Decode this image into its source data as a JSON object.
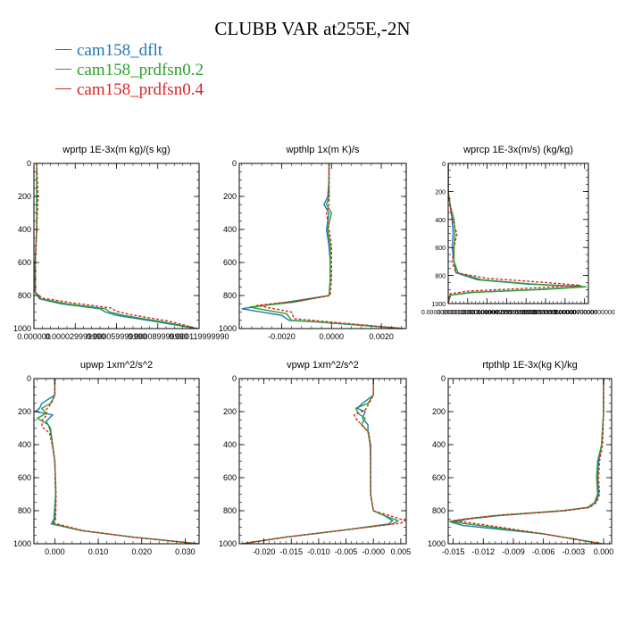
{
  "title": "CLUBB VAR at255E,-2N",
  "legend": [
    {
      "label": "cam158_dflt",
      "color": "#1f77b4"
    },
    {
      "label": "cam158_prdfsn0.2",
      "color": "#2ca02c"
    },
    {
      "label": "cam158_prdfsn0.4",
      "color": "#d62728"
    }
  ],
  "chart_data": [
    {
      "type": "line",
      "title": "wprtp  1E-3x(m kg)/(s kg)",
      "xlim": [
        0,
        0.00012
      ],
      "ylim": [
        1000,
        0
      ],
      "xticks": [
        0,
        3e-05,
        6e-05,
        9e-05,
        0.00012
      ],
      "xtick_labels": [
        "0.000000",
        "0.000029999990",
        "0.000059999990",
        "0.000089999990",
        "0.000119999990"
      ],
      "yticks": [
        0,
        200,
        400,
        600,
        800,
        1000
      ],
      "series": [
        {
          "name": "cam158_dflt",
          "y": [
            0,
            200,
            400,
            600,
            780,
            820,
            850,
            880,
            900,
            920,
            960,
            1000
          ],
          "x": [
            2e-06,
            2e-06,
            2e-06,
            1e-06,
            1e-06,
            4e-06,
            2e-05,
            4.8e-05,
            5.2e-05,
            6e-05,
            9e-05,
            0.000118
          ]
        },
        {
          "name": "cam158_prdfsn0.2",
          "y": [
            0,
            200,
            400,
            600,
            780,
            820,
            850,
            880,
            900,
            920,
            960,
            1000
          ],
          "x": [
            2e-06,
            2e-06,
            2e-06,
            1e-06,
            1e-06,
            5e-06,
            2.4e-05,
            5.2e-05,
            5.5e-05,
            6.5e-05,
            9.4e-05,
            0.000119
          ]
        },
        {
          "name": "cam158_prdfsn0.4",
          "y": [
            0,
            200,
            400,
            600,
            780,
            815,
            845,
            875,
            895,
            915,
            955,
            1000
          ],
          "x": [
            2e-06,
            3e-06,
            2e-06,
            1e-06,
            1e-06,
            6e-06,
            2.8e-05,
            5.6e-05,
            6e-05,
            7e-05,
            9.8e-05,
            0.000119
          ]
        }
      ]
    },
    {
      "type": "line",
      "title": "wpthlp  1x(m K)/s",
      "xlim": [
        -0.0037,
        0.003
      ],
      "ylim": [
        1000,
        0
      ],
      "xticks": [
        -0.002,
        0,
        0.002
      ],
      "xtick_labels": [
        "-0.0020",
        "0.0000",
        "0.0020"
      ],
      "yticks": [
        0,
        200,
        400,
        600,
        800,
        1000
      ],
      "series": [
        {
          "name": "cam158_dflt",
          "y": [
            0,
            100,
            200,
            250,
            300,
            400,
            500,
            600,
            700,
            800,
            840,
            880,
            920,
            950,
            960,
            1000
          ],
          "x": [
            -0.0001,
            -0.0001,
            -0.00015,
            -0.0003,
            -0.0001,
            -0.0002,
            -0.0001,
            -5e-05,
            -5e-05,
            -0.0001,
            -0.0018,
            -0.0036,
            -0.002,
            -0.0017,
            -0.0006,
            0.0029
          ]
        },
        {
          "name": "cam158_prdfsn0.2",
          "y": [
            0,
            100,
            200,
            250,
            300,
            400,
            500,
            600,
            700,
            800,
            840,
            870,
            910,
            950,
            960,
            1000
          ],
          "x": [
            -0.0001,
            -0.0001,
            -0.0001,
            -0.0002,
            0.0,
            -0.00015,
            -5e-05,
            -5e-05,
            -5e-05,
            -0.0001,
            -0.0015,
            -0.0033,
            -0.0018,
            -0.0016,
            -0.0005,
            0.0029
          ]
        },
        {
          "name": "cam158_prdfsn0.4",
          "y": [
            0,
            100,
            200,
            250,
            300,
            400,
            500,
            600,
            700,
            800,
            830,
            860,
            900,
            940,
            955,
            1000
          ],
          "x": [
            -0.0001,
            -0.0001,
            -0.0001,
            -0.0001,
            -0.0002,
            -0.0001,
            0.0,
            0.0,
            0.0,
            -5e-05,
            -0.0012,
            -0.003,
            -0.0016,
            -0.0015,
            -0.0004,
            0.0029
          ]
        }
      ]
    },
    {
      "type": "line",
      "title": "wprcp  1E-3x(m/s) (kg/kg)",
      "xlim": [
        0,
        7.2e-06
      ],
      "ylim": [
        1000,
        0
      ],
      "xticks": [
        0,
        1e-06,
        2e-06,
        3e-06,
        4e-06,
        5e-06,
        6e-06,
        7e-06
      ],
      "xtick_labels": [
        "0.00000000000000",
        "0.0000010000000000",
        "0.0000019999999",
        "0.0000029999999999",
        "0.0000039999999999",
        "0.0000050000000000",
        "0.00000600000000000",
        "0.0000070000000000"
      ],
      "yticks": [
        0,
        200,
        400,
        600,
        800,
        1000
      ],
      "series": [
        {
          "name": "cam158_dflt",
          "y": [
            0,
            200,
            300,
            400,
            500,
            600,
            700,
            780,
            830,
            860,
            880,
            900,
            920,
            940,
            1000
          ],
          "x": [
            0,
            0,
            1e-07,
            2e-07,
            2.5e-07,
            2e-07,
            3e-07,
            4e-07,
            1.5e-06,
            4e-06,
            7e-06,
            4.5e-06,
            1.2e-06,
            1e-07,
            0
          ]
        },
        {
          "name": "cam158_prdfsn0.2",
          "y": [
            0,
            200,
            300,
            400,
            500,
            600,
            700,
            780,
            830,
            860,
            880,
            900,
            920,
            940,
            1000
          ],
          "x": [
            0,
            0,
            1e-07,
            3e-07,
            3.5e-07,
            3e-07,
            3e-07,
            5e-07,
            1.7e-06,
            4.2e-06,
            7.1e-06,
            4.8e-06,
            1.3e-06,
            1e-07,
            0
          ]
        },
        {
          "name": "cam158_prdfsn0.4",
          "y": [
            0,
            200,
            300,
            400,
            500,
            600,
            700,
            780,
            820,
            850,
            870,
            890,
            910,
            930,
            1000
          ],
          "x": [
            0,
            0,
            1e-07,
            2e-07,
            4.5e-07,
            3e-07,
            2e-07,
            4e-07,
            2e-06,
            5e-06,
            6.8e-06,
            4.2e-06,
            1.1e-06,
            1e-07,
            0
          ]
        }
      ]
    },
    {
      "type": "line",
      "title": "upwp  1xm^2/s^2",
      "xlim": [
        -0.0048,
        0.0332
      ],
      "ylim": [
        1000,
        0
      ],
      "xticks": [
        0,
        0.01,
        0.02,
        0.03
      ],
      "xtick_labels": [
        "0.000",
        "0.010",
        "0.020",
        "0.030"
      ],
      "yticks": [
        0,
        200,
        400,
        600,
        800,
        1000
      ],
      "series": [
        {
          "name": "cam158_dflt",
          "y": [
            0,
            100,
            150,
            180,
            200,
            220,
            260,
            300,
            400,
            500,
            700,
            850,
            880,
            920,
            960,
            1000
          ],
          "x": [
            0.0,
            0.0,
            -0.003,
            -0.0035,
            -0.0045,
            -0.0005,
            -0.002,
            -0.001,
            -0.0005,
            0.0,
            0.0002,
            -0.0002,
            -0.0008,
            0.006,
            0.018,
            0.033
          ]
        },
        {
          "name": "cam158_prdfsn0.2",
          "y": [
            0,
            100,
            150,
            180,
            210,
            240,
            280,
            320,
            400,
            500,
            700,
            850,
            880,
            920,
            960,
            1000
          ],
          "x": [
            0.0,
            0.0,
            -0.001,
            -0.003,
            -0.002,
            -0.004,
            -0.0015,
            -0.001,
            -0.0005,
            0.0,
            0.0002,
            0.0,
            -0.0004,
            0.006,
            0.018,
            0.033
          ]
        },
        {
          "name": "cam158_prdfsn0.4",
          "y": [
            0,
            100,
            150,
            190,
            220,
            250,
            290,
            330,
            400,
            500,
            700,
            850,
            875,
            920,
            960,
            1000
          ],
          "x": [
            0.0,
            0.0,
            -0.0008,
            -0.002,
            -0.0018,
            -0.0028,
            -0.003,
            -0.0012,
            -0.0006,
            0.0,
            0.0003,
            0.0002,
            -0.0001,
            0.0065,
            0.018,
            0.033
          ]
        }
      ]
    },
    {
      "type": "line",
      "title": "vpwp  1xm^2/s^2",
      "xlim": [
        -0.0245,
        0.006
      ],
      "ylim": [
        1000,
        0
      ],
      "xticks": [
        -0.02,
        -0.015,
        -0.01,
        -0.005,
        0,
        0.005
      ],
      "xtick_labels": [
        "-0.020",
        "-0.015",
        "-0.010",
        "-0.005",
        "-0.000",
        "0.005"
      ],
      "yticks": [
        0,
        200,
        400,
        600,
        800,
        1000
      ],
      "series": [
        {
          "name": "cam158_dflt",
          "y": [
            0,
            100,
            150,
            180,
            200,
            240,
            280,
            320,
            400,
            500,
            700,
            800,
            830,
            860,
            880,
            920,
            960,
            1000
          ],
          "x": [
            0.0,
            0.0,
            -0.002,
            -0.003,
            -0.0015,
            -0.002,
            -0.001,
            -0.001,
            -0.0005,
            -0.0005,
            -0.0005,
            0.0,
            0.002,
            0.0035,
            0.0028,
            -0.006,
            -0.016,
            -0.024
          ]
        },
        {
          "name": "cam158_prdfsn0.2",
          "y": [
            0,
            100,
            150,
            180,
            210,
            240,
            280,
            320,
            400,
            500,
            700,
            800,
            830,
            860,
            880,
            920,
            960,
            1000
          ],
          "x": [
            0.0,
            0.0,
            -0.001,
            -0.0032,
            -0.0028,
            -0.0015,
            -0.0022,
            -0.001,
            -0.0006,
            -0.0005,
            -0.0005,
            0.0,
            0.002,
            0.0045,
            0.0035,
            -0.006,
            -0.016,
            -0.024
          ]
        },
        {
          "name": "cam158_prdfsn0.4",
          "y": [
            0,
            100,
            150,
            190,
            220,
            250,
            290,
            330,
            400,
            500,
            700,
            800,
            830,
            860,
            875,
            920,
            960,
            1000
          ],
          "x": [
            0.0,
            0.0,
            -0.0008,
            -0.0015,
            -0.0035,
            -0.003,
            -0.0018,
            -0.0008,
            -0.0006,
            -0.0005,
            -0.0005,
            0.0,
            0.003,
            0.0058,
            0.005,
            -0.006,
            -0.016,
            -0.024
          ]
        }
      ]
    },
    {
      "type": "line",
      "title": "rtpthlp  1E-3x(kg K)/kg",
      "xlim": [
        -0.0155,
        0.0008
      ],
      "ylim": [
        1000,
        0
      ],
      "xticks": [
        -0.015,
        -0.012,
        -0.009,
        -0.006,
        -0.003,
        0
      ],
      "xtick_labels": [
        "-0.015",
        "-0.012",
        "-0.009",
        "-0.006",
        "-0.003",
        "0.000"
      ],
      "yticks": [
        0,
        200,
        400,
        600,
        800,
        1000
      ],
      "series": [
        {
          "name": "cam158_dflt",
          "y": [
            0,
            200,
            400,
            500,
            600,
            700,
            750,
            780,
            800,
            830,
            850,
            870,
            890,
            940,
            1000
          ],
          "x": [
            0.0,
            0.0,
            -0.0002,
            -0.0005,
            -0.0006,
            -0.0005,
            -0.0008,
            -0.0015,
            -0.004,
            -0.0105,
            -0.0135,
            -0.0152,
            -0.014,
            -0.006,
            -0.0002
          ]
        },
        {
          "name": "cam158_prdfsn0.2",
          "y": [
            0,
            200,
            400,
            500,
            600,
            700,
            750,
            780,
            800,
            830,
            850,
            865,
            885,
            940,
            1000
          ],
          "x": [
            0.0,
            0.0,
            -0.0002,
            -0.0006,
            -0.0007,
            -0.0006,
            -0.0009,
            -0.0016,
            -0.0042,
            -0.0108,
            -0.0138,
            -0.0154,
            -0.013,
            -0.006,
            -0.0002
          ]
        },
        {
          "name": "cam158_prdfsn0.4",
          "y": [
            0,
            200,
            400,
            500,
            600,
            700,
            750,
            780,
            800,
            825,
            845,
            860,
            880,
            940,
            1000
          ],
          "x": [
            0.0,
            0.0,
            -0.0001,
            -0.0004,
            -0.0005,
            -0.0004,
            -0.0007,
            -0.0014,
            -0.0038,
            -0.01,
            -0.0132,
            -0.015,
            -0.0125,
            -0.006,
            -0.0002
          ]
        }
      ]
    }
  ]
}
